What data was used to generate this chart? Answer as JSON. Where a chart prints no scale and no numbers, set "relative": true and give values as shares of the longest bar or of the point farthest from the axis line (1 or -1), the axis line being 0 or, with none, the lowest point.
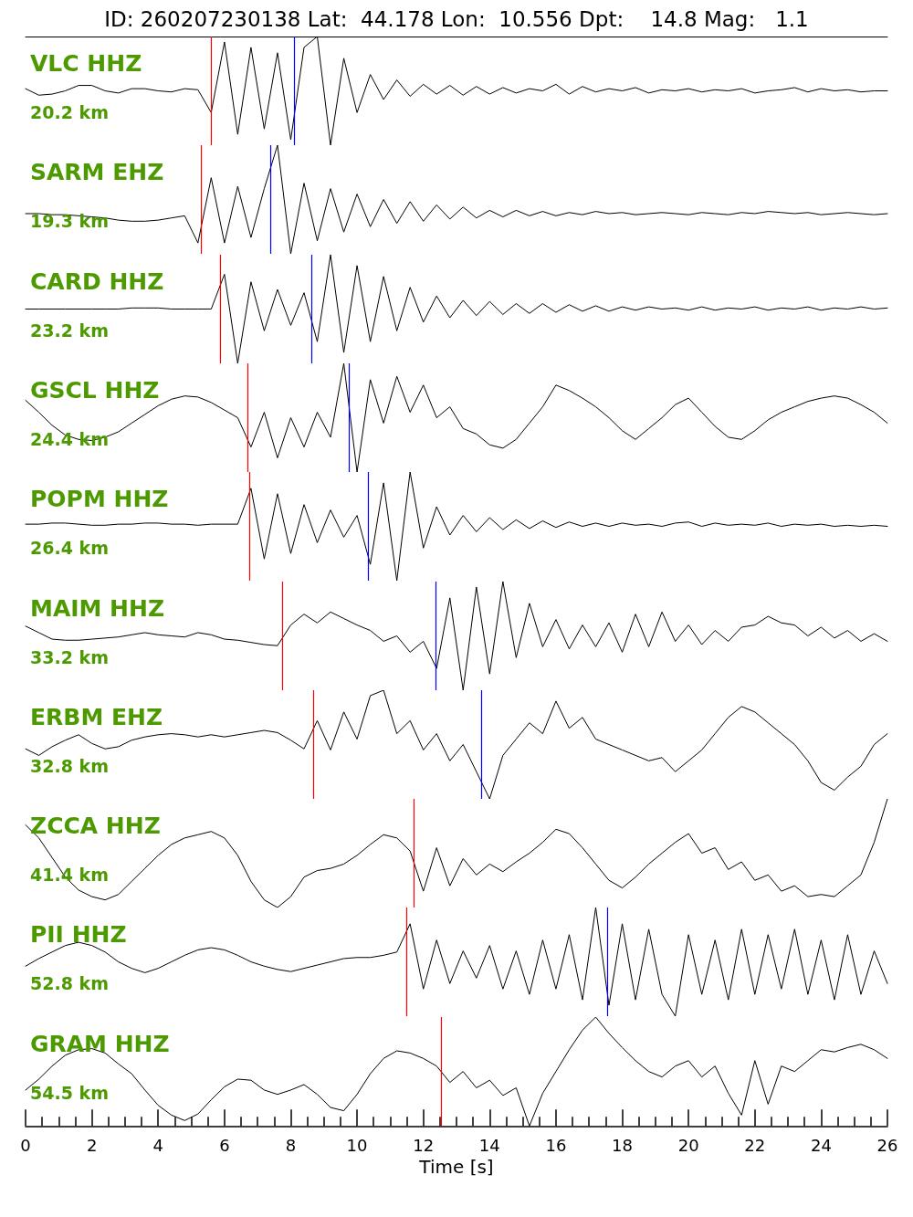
{
  "chart_data": [
    {
      "type": "line",
      "title": "ID: 260207230138 Lat:  44.178 Lon:  10.556 Dpt:    14.8 Mag:   1.1",
      "annotations": [
        "VLC HHZ",
        "20.2 km"
      ],
      "relative": true,
      "xlim": [
        0,
        26
      ],
      "tick_labels": false,
      "color": "#000000",
      "x": [
        0,
        0.4,
        0.8,
        1.2,
        1.6,
        2,
        2.4,
        2.8,
        3.2,
        3.6,
        4,
        4.4,
        4.8,
        5.2,
        5.6,
        6,
        6.4,
        6.8,
        7.2,
        7.6,
        8,
        8.4,
        8.8,
        9.2,
        9.6,
        10,
        10.4,
        10.8,
        11.2,
        11.6,
        12,
        12.4,
        12.8,
        13.2,
        13.6,
        14,
        14.4,
        14.8,
        15.2,
        15.6,
        16,
        16.4,
        16.8,
        17.2,
        17.6,
        18,
        18.4,
        18.8,
        19.2,
        19.6,
        20,
        20.4,
        20.8,
        21.2,
        21.6,
        22,
        22.4,
        22.8,
        23.2,
        23.6,
        24,
        24.4,
        24.8,
        25.2,
        25.6,
        26
      ],
      "values": [
        0.52,
        0.46,
        0.47,
        0.5,
        0.55,
        0.55,
        0.5,
        0.48,
        0.52,
        0.52,
        0.5,
        0.49,
        0.52,
        0.51,
        0.3,
        0.95,
        0.1,
        0.9,
        0.15,
        0.85,
        0.05,
        0.9,
        1,
        0,
        0.8,
        0.3,
        0.65,
        0.42,
        0.6,
        0.45,
        0.56,
        0.47,
        0.55,
        0.46,
        0.54,
        0.47,
        0.53,
        0.48,
        0.52,
        0.5,
        0.56,
        0.47,
        0.54,
        0.49,
        0.52,
        0.5,
        0.53,
        0.48,
        0.51,
        0.5,
        0.52,
        0.49,
        0.51,
        0.5,
        0.52,
        0.48,
        0.5,
        0.51,
        0.53,
        0.49,
        0.52,
        0.5,
        0.51,
        0.49,
        0.5,
        0.5
      ],
      "ref_lines": [
        {
          "axis": "x",
          "value": 5.59,
          "color": "#ff0000"
        },
        {
          "axis": "x",
          "value": 8.1,
          "color": "#0000ff"
        }
      ]
    },
    {
      "type": "line",
      "annotations": [
        "SARM EHZ",
        "19.3 km"
      ],
      "relative": true,
      "xlim": [
        0,
        26
      ],
      "tick_labels": false,
      "color": "#000000",
      "x": [
        0,
        0.4,
        0.8,
        1.2,
        1.6,
        2,
        2.4,
        2.8,
        3.2,
        3.6,
        4,
        4.4,
        4.8,
        5.2,
        5.6,
        6,
        6.4,
        6.8,
        7.2,
        7.6,
        8,
        8.4,
        8.8,
        9.2,
        9.6,
        10,
        10.4,
        10.8,
        11.2,
        11.6,
        12,
        12.4,
        12.8,
        13.2,
        13.6,
        14,
        14.4,
        14.8,
        15.2,
        15.6,
        16,
        16.4,
        16.8,
        17.2,
        17.6,
        18,
        18.4,
        18.8,
        19.2,
        19.6,
        20,
        20.4,
        20.8,
        21.2,
        21.6,
        22,
        22.4,
        22.8,
        23.2,
        23.6,
        24,
        24.4,
        24.8,
        25.2,
        25.6,
        26
      ],
      "values": [
        0.37,
        0.37,
        0.36,
        0.36,
        0.35,
        0.34,
        0.33,
        0.31,
        0.3,
        0.3,
        0.31,
        0.33,
        0.35,
        0.1,
        0.7,
        0.1,
        0.62,
        0.15,
        0.6,
        1,
        0,
        0.65,
        0.12,
        0.6,
        0.2,
        0.55,
        0.25,
        0.5,
        0.28,
        0.48,
        0.3,
        0.45,
        0.32,
        0.43,
        0.33,
        0.4,
        0.34,
        0.4,
        0.35,
        0.39,
        0.35,
        0.38,
        0.36,
        0.39,
        0.37,
        0.38,
        0.36,
        0.37,
        0.38,
        0.37,
        0.36,
        0.38,
        0.37,
        0.36,
        0.38,
        0.37,
        0.39,
        0.38,
        0.37,
        0.38,
        0.36,
        0.37,
        0.38,
        0.37,
        0.36,
        0.37
      ],
      "ref_lines": [
        {
          "axis": "x",
          "value": 5.29,
          "color": "#ff0000"
        },
        {
          "axis": "x",
          "value": 7.38,
          "color": "#0000ff"
        }
      ]
    },
    {
      "type": "line",
      "annotations": [
        "CARD HHZ",
        "23.2 km"
      ],
      "relative": true,
      "xlim": [
        0,
        26
      ],
      "tick_labels": false,
      "color": "#000000",
      "x": [
        0,
        0.4,
        0.8,
        1.2,
        1.6,
        2,
        2.4,
        2.8,
        3.2,
        3.6,
        4,
        4.4,
        4.8,
        5.2,
        5.6,
        6,
        6.4,
        6.8,
        7.2,
        7.6,
        8,
        8.4,
        8.8,
        9.2,
        9.6,
        10,
        10.4,
        10.8,
        11.2,
        11.6,
        12,
        12.4,
        12.8,
        13.2,
        13.6,
        14,
        14.4,
        14.8,
        15.2,
        15.6,
        16,
        16.4,
        16.8,
        17.2,
        17.6,
        18,
        18.4,
        18.8,
        19.2,
        19.6,
        20,
        20.4,
        20.8,
        21.2,
        21.6,
        22,
        22.4,
        22.8,
        23.2,
        23.6,
        24,
        24.4,
        24.8,
        25.2,
        25.6,
        26
      ],
      "values": [
        0.5,
        0.5,
        0.5,
        0.5,
        0.5,
        0.5,
        0.5,
        0.5,
        0.51,
        0.51,
        0.51,
        0.5,
        0.5,
        0.5,
        0.5,
        0.82,
        0,
        0.75,
        0.3,
        0.68,
        0.35,
        0.65,
        0.2,
        1,
        0.1,
        0.9,
        0.2,
        0.8,
        0.3,
        0.7,
        0.38,
        0.62,
        0.42,
        0.58,
        0.44,
        0.57,
        0.45,
        0.55,
        0.46,
        0.55,
        0.47,
        0.54,
        0.48,
        0.53,
        0.48,
        0.52,
        0.49,
        0.52,
        0.5,
        0.51,
        0.49,
        0.52,
        0.49,
        0.51,
        0.5,
        0.52,
        0.49,
        0.51,
        0.5,
        0.52,
        0.49,
        0.51,
        0.5,
        0.52,
        0.5,
        0.51
      ],
      "ref_lines": [
        {
          "axis": "x",
          "value": 5.87,
          "color": "#ff0000"
        },
        {
          "axis": "x",
          "value": 8.62,
          "color": "#0000ff"
        }
      ]
    },
    {
      "type": "line",
      "annotations": [
        "GSCL HHZ",
        "24.4 km"
      ],
      "relative": true,
      "xlim": [
        0,
        26
      ],
      "tick_labels": false,
      "color": "#000000",
      "x": [
        0,
        0.4,
        0.8,
        1.2,
        1.6,
        2,
        2.4,
        2.8,
        3.2,
        3.6,
        4,
        4.4,
        4.8,
        5.2,
        5.6,
        6,
        6.4,
        6.8,
        7.2,
        7.6,
        8,
        8.4,
        8.8,
        9.2,
        9.6,
        10,
        10.4,
        10.8,
        11.2,
        11.6,
        12,
        12.4,
        12.8,
        13.2,
        13.6,
        14,
        14.4,
        14.8,
        15.2,
        15.6,
        16,
        16.4,
        16.8,
        17.2,
        17.6,
        18,
        18.4,
        18.8,
        19.2,
        19.6,
        20,
        20.4,
        20.8,
        21.2,
        21.6,
        22,
        22.4,
        22.8,
        23.2,
        23.6,
        24,
        24.4,
        24.8,
        25.2,
        25.6,
        26
      ],
      "values": [
        0.66,
        0.55,
        0.43,
        0.34,
        0.3,
        0.29,
        0.32,
        0.37,
        0.45,
        0.53,
        0.61,
        0.67,
        0.7,
        0.69,
        0.64,
        0.57,
        0.5,
        0.23,
        0.55,
        0.13,
        0.5,
        0.23,
        0.55,
        0.32,
        1,
        0,
        0.85,
        0.45,
        0.88,
        0.55,
        0.8,
        0.5,
        0.6,
        0.4,
        0.35,
        0.25,
        0.22,
        0.3,
        0.45,
        0.6,
        0.8,
        0.75,
        0.68,
        0.6,
        0.5,
        0.38,
        0.3,
        0.4,
        0.5,
        0.62,
        0.68,
        0.55,
        0.42,
        0.32,
        0.3,
        0.38,
        0.48,
        0.55,
        0.6,
        0.65,
        0.68,
        0.7,
        0.68,
        0.62,
        0.55,
        0.45
      ],
      "ref_lines": [
        {
          "axis": "x",
          "value": 6.69,
          "color": "#ff0000"
        },
        {
          "axis": "x",
          "value": 9.75,
          "color": "#0000ff"
        }
      ]
    },
    {
      "type": "line",
      "annotations": [
        "POPM HHZ",
        "26.4 km"
      ],
      "relative": true,
      "xlim": [
        0,
        26
      ],
      "tick_labels": false,
      "color": "#000000",
      "x": [
        0,
        0.4,
        0.8,
        1.2,
        1.6,
        2,
        2.4,
        2.8,
        3.2,
        3.6,
        4,
        4.4,
        4.8,
        5.2,
        5.6,
        6,
        6.4,
        6.8,
        7.2,
        7.6,
        8,
        8.4,
        8.8,
        9.2,
        9.6,
        10,
        10.4,
        10.8,
        11.2,
        11.6,
        12,
        12.4,
        12.8,
        13.2,
        13.6,
        14,
        14.4,
        14.8,
        15.2,
        15.6,
        16,
        16.4,
        16.8,
        17.2,
        17.6,
        18,
        18.4,
        18.8,
        19.2,
        19.6,
        20,
        20.4,
        20.8,
        21.2,
        21.6,
        22,
        22.4,
        22.8,
        23.2,
        23.6,
        24,
        24.4,
        24.8,
        25.2,
        25.6,
        26
      ],
      "values": [
        0.52,
        0.52,
        0.53,
        0.53,
        0.52,
        0.51,
        0.51,
        0.52,
        0.52,
        0.53,
        0.53,
        0.52,
        0.52,
        0.51,
        0.52,
        0.52,
        0.52,
        0.85,
        0.2,
        0.8,
        0.25,
        0.7,
        0.35,
        0.65,
        0.4,
        0.6,
        0.15,
        0.9,
        0,
        1,
        0.3,
        0.68,
        0.42,
        0.6,
        0.45,
        0.58,
        0.47,
        0.56,
        0.48,
        0.55,
        0.49,
        0.54,
        0.5,
        0.53,
        0.5,
        0.53,
        0.51,
        0.52,
        0.5,
        0.53,
        0.54,
        0.5,
        0.53,
        0.51,
        0.52,
        0.51,
        0.53,
        0.5,
        0.52,
        0.51,
        0.52,
        0.5,
        0.51,
        0.5,
        0.51,
        0.5
      ],
      "ref_lines": [
        {
          "axis": "x",
          "value": 6.75,
          "color": "#ff0000"
        },
        {
          "axis": "x",
          "value": 10.33,
          "color": "#0000ff"
        }
      ]
    },
    {
      "type": "line",
      "annotations": [
        "MAIM HHZ",
        "33.2 km"
      ],
      "relative": true,
      "xlim": [
        0,
        26
      ],
      "tick_labels": false,
      "color": "#000000",
      "x": [
        0,
        0.4,
        0.8,
        1.2,
        1.6,
        2,
        2.4,
        2.8,
        3.2,
        3.6,
        4,
        4.4,
        4.8,
        5.2,
        5.6,
        6,
        6.4,
        6.8,
        7.2,
        7.6,
        8,
        8.4,
        8.8,
        9.2,
        9.6,
        10,
        10.4,
        10.8,
        11.2,
        11.6,
        12,
        12.4,
        12.8,
        13.2,
        13.6,
        14,
        14.4,
        14.8,
        15.2,
        15.6,
        16,
        16.4,
        16.8,
        17.2,
        17.6,
        18,
        18.4,
        18.8,
        19.2,
        19.6,
        20,
        20.4,
        20.8,
        21.2,
        21.6,
        22,
        22.4,
        22.8,
        23.2,
        23.6,
        24,
        24.4,
        24.8,
        25.2,
        25.6,
        26
      ],
      "values": [
        0.59,
        0.53,
        0.47,
        0.46,
        0.46,
        0.47,
        0.48,
        0.49,
        0.51,
        0.53,
        0.51,
        0.5,
        0.49,
        0.53,
        0.51,
        0.47,
        0.46,
        0.44,
        0.42,
        0.41,
        0.6,
        0.7,
        0.62,
        0.72,
        0.66,
        0.6,
        0.55,
        0.45,
        0.5,
        0.35,
        0.45,
        0.2,
        0.85,
        0,
        0.95,
        0.15,
        1,
        0.3,
        0.8,
        0.4,
        0.65,
        0.38,
        0.6,
        0.4,
        0.62,
        0.35,
        0.7,
        0.4,
        0.72,
        0.45,
        0.6,
        0.42,
        0.55,
        0.45,
        0.58,
        0.6,
        0.68,
        0.62,
        0.6,
        0.5,
        0.58,
        0.48,
        0.55,
        0.45,
        0.52,
        0.45
      ],
      "ref_lines": [
        {
          "axis": "x",
          "value": 7.74,
          "color": "#ff0000"
        },
        {
          "axis": "x",
          "value": 12.37,
          "color": "#0000ff"
        }
      ]
    },
    {
      "type": "line",
      "annotations": [
        "ERBM EHZ",
        "32.8 km"
      ],
      "relative": true,
      "xlim": [
        0,
        26
      ],
      "tick_labels": false,
      "color": "#000000",
      "x": [
        0,
        0.4,
        0.8,
        1.2,
        1.6,
        2,
        2.4,
        2.8,
        3.2,
        3.6,
        4,
        4.4,
        4.8,
        5.2,
        5.6,
        6,
        6.4,
        6.8,
        7.2,
        7.6,
        8,
        8.4,
        8.8,
        9.2,
        9.6,
        10,
        10.4,
        10.8,
        11.2,
        11.6,
        12,
        12.4,
        12.8,
        13.2,
        13.6,
        14,
        14.4,
        14.8,
        15.2,
        15.6,
        16,
        16.4,
        16.8,
        17.2,
        17.6,
        18,
        18.4,
        18.8,
        19.2,
        19.6,
        20,
        20.4,
        20.8,
        21.2,
        21.6,
        22,
        22.4,
        22.8,
        23.2,
        23.6,
        24,
        24.4,
        24.8,
        25.2,
        25.6,
        26
      ],
      "values": [
        0.46,
        0.4,
        0.48,
        0.54,
        0.59,
        0.51,
        0.46,
        0.48,
        0.54,
        0.57,
        0.59,
        0.6,
        0.59,
        0.57,
        0.59,
        0.57,
        0.59,
        0.61,
        0.63,
        0.61,
        0.54,
        0.46,
        0.72,
        0.45,
        0.8,
        0.55,
        0.95,
        1,
        0.6,
        0.72,
        0.45,
        0.6,
        0.35,
        0.5,
        0.25,
        0,
        0.4,
        0.55,
        0.7,
        0.6,
        0.9,
        0.65,
        0.75,
        0.55,
        0.5,
        0.45,
        0.4,
        0.35,
        0.38,
        0.25,
        0.35,
        0.45,
        0.6,
        0.75,
        0.85,
        0.8,
        0.7,
        0.6,
        0.5,
        0.35,
        0.15,
        0.08,
        0.2,
        0.3,
        0.5,
        0.6
      ],
      "ref_lines": [
        {
          "axis": "x",
          "value": 8.68,
          "color": "#ff0000"
        },
        {
          "axis": "x",
          "value": 13.75,
          "color": "#0000ff"
        }
      ]
    },
    {
      "type": "line",
      "annotations": [
        "ZCCA HHZ",
        "41.4 km"
      ],
      "relative": true,
      "xlim": [
        0,
        26
      ],
      "tick_labels": false,
      "color": "#000000",
      "x": [
        0,
        0.4,
        0.8,
        1.2,
        1.6,
        2,
        2.4,
        2.8,
        3.2,
        3.6,
        4,
        4.4,
        4.8,
        5.2,
        5.6,
        6,
        6.4,
        6.8,
        7.2,
        7.6,
        8,
        8.4,
        8.8,
        9.2,
        9.6,
        10,
        10.4,
        10.8,
        11.2,
        11.6,
        12,
        12.4,
        12.8,
        13.2,
        13.6,
        14,
        14.4,
        14.8,
        15.2,
        15.6,
        16,
        16.4,
        16.8,
        17.2,
        17.6,
        18,
        18.4,
        18.8,
        19.2,
        19.6,
        20,
        20.4,
        20.8,
        21.2,
        21.6,
        22,
        22.4,
        22.8,
        23.2,
        23.6,
        24,
        24.4,
        24.8,
        25.2,
        25.6,
        26
      ],
      "values": [
        0.76,
        0.64,
        0.46,
        0.28,
        0.16,
        0.1,
        0.07,
        0.12,
        0.24,
        0.36,
        0.48,
        0.58,
        0.64,
        0.67,
        0.7,
        0.64,
        0.48,
        0.24,
        0.07,
        0,
        0.1,
        0.28,
        0.34,
        0.36,
        0.4,
        0.48,
        0.58,
        0.67,
        0.64,
        0.52,
        0.15,
        0.55,
        0.2,
        0.45,
        0.3,
        0.4,
        0.33,
        0.42,
        0.5,
        0.6,
        0.72,
        0.68,
        0.55,
        0.4,
        0.25,
        0.18,
        0.28,
        0.4,
        0.5,
        0.6,
        0.68,
        0.5,
        0.55,
        0.35,
        0.42,
        0.25,
        0.3,
        0.15,
        0.2,
        0.1,
        0.12,
        0.1,
        0.2,
        0.3,
        0.6,
        1
      ],
      "ref_lines": [
        {
          "axis": "x",
          "value": 11.71,
          "color": "#ff0000"
        }
      ]
    },
    {
      "type": "line",
      "annotations": [
        "PII HHZ",
        "52.8 km"
      ],
      "relative": true,
      "xlim": [
        0,
        26
      ],
      "tick_labels": false,
      "color": "#000000",
      "x": [
        0,
        0.4,
        0.8,
        1.2,
        1.6,
        2,
        2.4,
        2.8,
        3.2,
        3.6,
        4,
        4.4,
        4.8,
        5.2,
        5.6,
        6,
        6.4,
        6.8,
        7.2,
        7.6,
        8,
        8.4,
        8.8,
        9.2,
        9.6,
        10,
        10.4,
        10.8,
        11.2,
        11.6,
        12,
        12.4,
        12.8,
        13.2,
        13.6,
        14,
        14.4,
        14.8,
        15.2,
        15.6,
        16,
        16.4,
        16.8,
        17.2,
        17.6,
        18,
        18.4,
        18.8,
        19.2,
        19.6,
        20,
        20.4,
        20.8,
        21.2,
        21.6,
        22,
        22.4,
        22.8,
        23.2,
        23.6,
        24,
        24.4,
        24.8,
        25.2,
        25.6,
        26
      ],
      "values": [
        0.46,
        0.53,
        0.59,
        0.65,
        0.68,
        0.65,
        0.59,
        0.5,
        0.44,
        0.4,
        0.44,
        0.5,
        0.56,
        0.61,
        0.63,
        0.61,
        0.56,
        0.5,
        0.46,
        0.43,
        0.41,
        0.44,
        0.47,
        0.5,
        0.53,
        0.54,
        0.54,
        0.56,
        0.59,
        0.85,
        0.25,
        0.7,
        0.3,
        0.6,
        0.35,
        0.65,
        0.25,
        0.6,
        0.2,
        0.7,
        0.25,
        0.75,
        0.15,
        1,
        0.1,
        0.85,
        0.15,
        0.8,
        0.2,
        0,
        0.75,
        0.2,
        0.7,
        0.15,
        0.8,
        0.2,
        0.75,
        0.25,
        0.8,
        0.2,
        0.7,
        0.15,
        0.75,
        0.2,
        0.6,
        0.3
      ],
      "ref_lines": [
        {
          "axis": "x",
          "value": 11.49,
          "color": "#ff0000"
        },
        {
          "axis": "x",
          "value": 17.55,
          "color": "#0000ff"
        }
      ]
    },
    {
      "type": "line",
      "annotations": [
        "GRAM HHZ",
        "54.5 km"
      ],
      "relative": true,
      "xlim": [
        0,
        26
      ],
      "tick_labels": "x",
      "xlabel": "Time [s]",
      "color": "#000000",
      "xticks": [
        0,
        {
          "value": 0.5,
          "label": null
        },
        {
          "value": 1,
          "label": null
        },
        {
          "value": 1.5,
          "label": null
        },
        2,
        {
          "value": 2.5,
          "label": null
        },
        {
          "value": 3,
          "label": null
        },
        {
          "value": 3.5,
          "label": null
        },
        4,
        {
          "value": 4.5,
          "label": null
        },
        {
          "value": 5,
          "label": null
        },
        {
          "value": 5.5,
          "label": null
        },
        6,
        {
          "value": 6.5,
          "label": null
        },
        {
          "value": 7,
          "label": null
        },
        {
          "value": 7.5,
          "label": null
        },
        8,
        {
          "value": 8.5,
          "label": null
        },
        {
          "value": 9,
          "label": null
        },
        {
          "value": 9.5,
          "label": null
        },
        10,
        {
          "value": 10.5,
          "label": null
        },
        {
          "value": 11,
          "label": null
        },
        {
          "value": 11.5,
          "label": null
        },
        12,
        {
          "value": 12.5,
          "label": null
        },
        {
          "value": 13,
          "label": null
        },
        {
          "value": 13.5,
          "label": null
        },
        14,
        {
          "value": 14.5,
          "label": null
        },
        {
          "value": 15,
          "label": null
        },
        {
          "value": 15.5,
          "label": null
        },
        16,
        {
          "value": 16.5,
          "label": null
        },
        {
          "value": 17,
          "label": null
        },
        {
          "value": 17.5,
          "label": null
        },
        18,
        {
          "value": 18.5,
          "label": null
        },
        {
          "value": 19,
          "label": null
        },
        {
          "value": 19.5,
          "label": null
        },
        20,
        {
          "value": 20.5,
          "label": null
        },
        {
          "value": 21,
          "label": null
        },
        {
          "value": 21.5,
          "label": null
        },
        22,
        {
          "value": 22.5,
          "label": null
        },
        {
          "value": 23,
          "label": null
        },
        {
          "value": 23.5,
          "label": null
        },
        24,
        {
          "value": 24.5,
          "label": null
        },
        {
          "value": 25,
          "label": null
        },
        {
          "value": 25.5,
          "label": null
        },
        26
      ],
      "x": [
        0,
        0.4,
        0.8,
        1.2,
        1.6,
        2,
        2.4,
        2.8,
        3.2,
        3.6,
        4,
        4.4,
        4.8,
        5.2,
        5.6,
        6,
        6.4,
        6.8,
        7.2,
        7.6,
        8,
        8.4,
        8.8,
        9.2,
        9.6,
        10,
        10.4,
        10.8,
        11.2,
        11.6,
        12,
        12.4,
        12.8,
        13.2,
        13.6,
        14,
        14.4,
        14.8,
        15.2,
        15.6,
        16,
        16.4,
        16.8,
        17.2,
        17.6,
        18,
        18.4,
        18.8,
        19.2,
        19.6,
        20,
        20.4,
        20.8,
        21.2,
        21.6,
        22,
        22.4,
        22.8,
        23.2,
        23.6,
        24,
        24.4,
        24.8,
        25.2,
        25.6,
        26
      ],
      "values": [
        0.33,
        0.43,
        0.55,
        0.65,
        0.7,
        0.71,
        0.67,
        0.57,
        0.48,
        0.33,
        0.19,
        0.1,
        0.05,
        0.11,
        0.24,
        0.36,
        0.43,
        0.42,
        0.33,
        0.29,
        0.33,
        0.38,
        0.29,
        0.17,
        0.14,
        0.29,
        0.48,
        0.62,
        0.69,
        0.67,
        0.62,
        0.55,
        0.4,
        0.5,
        0.35,
        0.42,
        0.28,
        0.35,
        0,
        0.3,
        0.5,
        0.7,
        0.88,
        1,
        0.85,
        0.72,
        0.6,
        0.5,
        0.45,
        0.55,
        0.6,
        0.45,
        0.55,
        0.3,
        0.1,
        0.6,
        0.2,
        0.55,
        0.5,
        0.6,
        0.7,
        0.68,
        0.72,
        0.75,
        0.7,
        0.62
      ],
      "ref_lines": [
        {
          "axis": "x",
          "value": 12.53,
          "color": "#ff0000"
        }
      ]
    }
  ]
}
